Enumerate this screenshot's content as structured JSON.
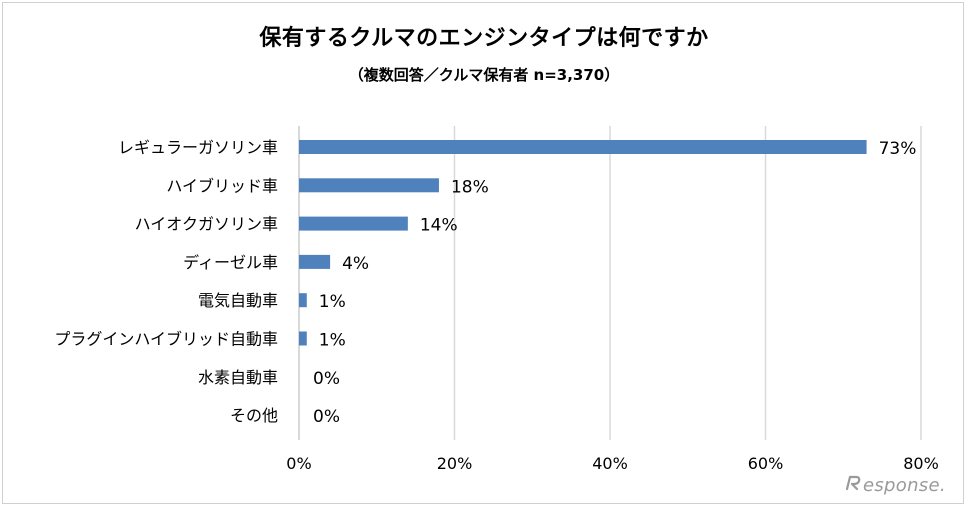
{
  "chart_data": {
    "type": "bar",
    "orientation": "horizontal",
    "title": "保有するクルマのエンジンタイプは何ですか",
    "subtitle": "（複数回答／クルマ保有者 n=3,370）",
    "categories": [
      "レギュラーガソリン車",
      "ハイブリッド車",
      "ハイオクガソリン車",
      "ディーゼル車",
      "電気自動車",
      "プラグインハイブリッド自動車",
      "水素自動車",
      "その他"
    ],
    "values": [
      73,
      18,
      14,
      4,
      1,
      1,
      0,
      0
    ],
    "value_labels": [
      "73%",
      "18%",
      "14%",
      "4%",
      "1%",
      "1%",
      "0%",
      "0%"
    ],
    "xlim": [
      0,
      80
    ],
    "x_ticks": [
      0,
      20,
      40,
      60,
      80
    ],
    "x_tick_labels": [
      "0%",
      "20%",
      "40%",
      "60%",
      "80%"
    ],
    "grid": "vertical",
    "bar_color": "#4f81bd",
    "grid_color": "#d9d9d9"
  },
  "watermark": {
    "text": "esponse."
  }
}
